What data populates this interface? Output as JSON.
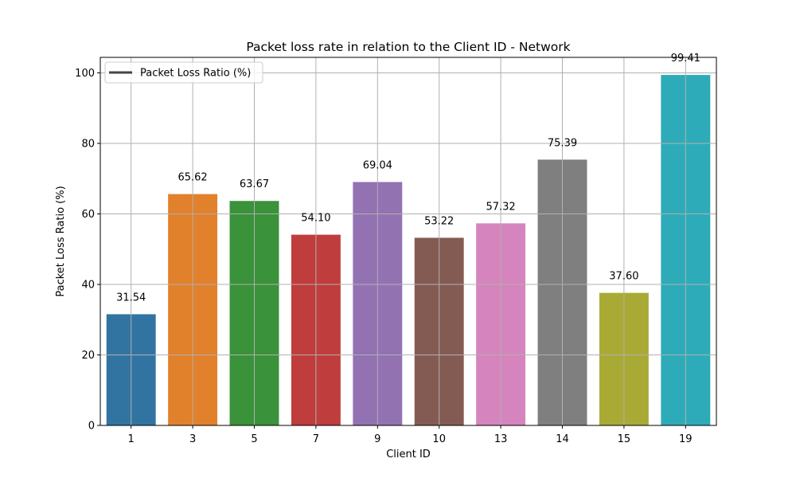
{
  "chart_data": {
    "type": "bar",
    "title": "Packet loss rate in relation to the Client ID - Network",
    "xlabel": "Client ID",
    "ylabel": "Packet Loss Ratio (%)",
    "categories": [
      "1",
      "3",
      "5",
      "7",
      "9",
      "10",
      "13",
      "14",
      "15",
      "19"
    ],
    "values": [
      31.54,
      65.62,
      63.67,
      54.1,
      69.04,
      53.22,
      57.32,
      75.39,
      37.6,
      99.41
    ],
    "value_labels": [
      "31.54",
      "65.62",
      "63.67",
      "54.10",
      "69.04",
      "53.22",
      "57.32",
      "75.39",
      "37.60",
      "99.41"
    ],
    "colors": [
      "#3274a1",
      "#e1812c",
      "#3a923a",
      "#c03d3e",
      "#9372b2",
      "#845b53",
      "#d684bd",
      "#7f7f7f",
      "#a9aa35",
      "#2eabb8"
    ],
    "ylim": [
      0,
      104.4
    ],
    "yticks": [
      0,
      20,
      40,
      60,
      80,
      100
    ],
    "ytick_labels": [
      "0",
      "20",
      "40",
      "60",
      "80",
      "100"
    ],
    "grid": true,
    "legend": {
      "position": "top-left",
      "entries": [
        {
          "label": "Packet Loss Ratio (%)",
          "color": "#444444"
        }
      ]
    }
  }
}
